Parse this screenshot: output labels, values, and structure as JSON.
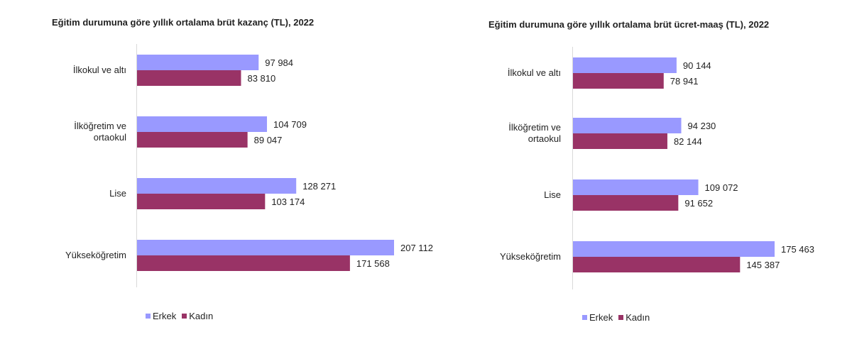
{
  "chart_data": [
    {
      "type": "bar",
      "orientation": "horizontal",
      "title": "Eğitim durumuna göre yıllık ortalama brüt kazanç (TL), 2022",
      "categories": [
        [
          "İlkokul ve altı"
        ],
        [
          "İlköğretim ve",
          "ortaokul"
        ],
        [
          "Lise"
        ],
        [
          "Yükseköğretim"
        ]
      ],
      "series": [
        {
          "name": "Erkek",
          "color": "#9999ff",
          "values": [
            97984,
            104709,
            128271,
            207112
          ],
          "labels": [
            "97 984",
            "104 709",
            "128 271",
            "207 112"
          ]
        },
        {
          "name": "Kadın",
          "color": "#993366",
          "values": [
            83810,
            89047,
            103174,
            171568
          ],
          "labels": [
            "83 810",
            "89 047",
            "103 174",
            "171 568"
          ]
        }
      ],
      "xlim": [
        0,
        240000
      ],
      "grid": false,
      "legend": "bottom"
    },
    {
      "type": "bar",
      "orientation": "horizontal",
      "title": "Eğitim durumuna göre yıllık ortalama brüt ücret-maaş (TL), 2022",
      "categories": [
        [
          "İlkokul ve altı"
        ],
        [
          "İlköğretim ve",
          "ortaokul"
        ],
        [
          "Lise"
        ],
        [
          "Yükseköğretim"
        ]
      ],
      "series": [
        {
          "name": "Erkek",
          "color": "#9999ff",
          "values": [
            90144,
            94230,
            109072,
            175463
          ],
          "labels": [
            "90 144",
            "94 230",
            "109 072",
            "175 463"
          ]
        },
        {
          "name": "Kadın",
          "color": "#993366",
          "values": [
            78941,
            82144,
            91652,
            145387
          ],
          "labels": [
            "78 941",
            "82 144",
            "91 652",
            "145 387"
          ]
        }
      ],
      "xlim": [
        0,
        200000
      ],
      "grid": false,
      "legend": "bottom"
    }
  ]
}
